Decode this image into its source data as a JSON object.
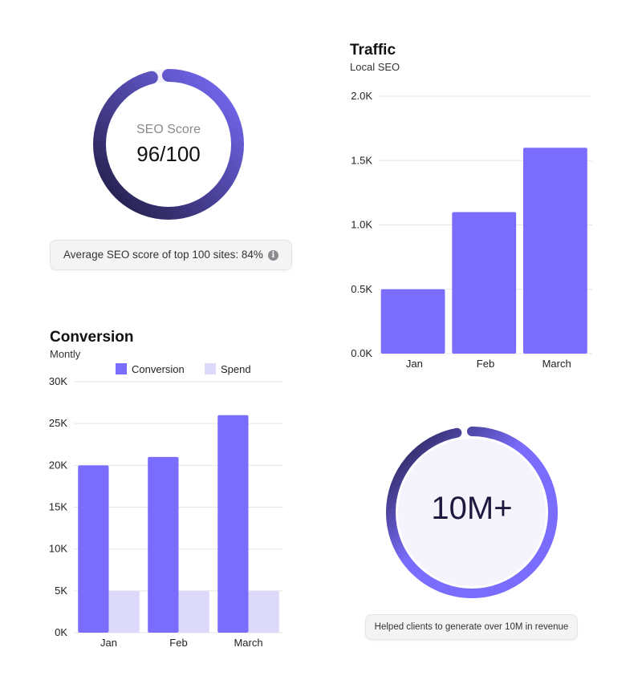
{
  "seo_card": {
    "label": "SEO Score",
    "value_text": "96/100",
    "score_fraction": 0.96,
    "footer": "Average SEO score of top 100 sites: 84%",
    "info_icon": "i"
  },
  "revenue_card": {
    "value_text": "10M+",
    "fill_fraction": 0.97,
    "footer": "Helped clients to generate over 10M in revenue"
  },
  "colors": {
    "primary": "#7a6dfd",
    "secondary": "#dcd9fb",
    "dark": "#1e1a3e",
    "grid": "#e5e5e5"
  },
  "chart_data": [
    {
      "type": "bar",
      "title": "Traffic",
      "subtitle": "Local SEO",
      "categories": [
        "Jan",
        "Feb",
        "March"
      ],
      "values": [
        500,
        1100,
        1600
      ],
      "yticks": [
        "0.0K",
        "0.5K",
        "1.0K",
        "1.5K",
        "2.0K"
      ],
      "ylim": [
        0,
        2000
      ],
      "grid": true,
      "legend": "none"
    },
    {
      "type": "bar",
      "title": "Conversion",
      "subtitle": "Montly",
      "categories": [
        "Jan",
        "Feb",
        "March"
      ],
      "series": [
        {
          "name": "Conversion",
          "values": [
            20000,
            21000,
            26000
          ]
        },
        {
          "name": "Spend",
          "values": [
            5000,
            5000,
            5000
          ]
        }
      ],
      "yticks": [
        "0K",
        "5K",
        "10K",
        "15K",
        "20K",
        "25K",
        "30K"
      ],
      "ylim": [
        0,
        30000
      ],
      "grid": true,
      "legend": "top-center"
    }
  ]
}
